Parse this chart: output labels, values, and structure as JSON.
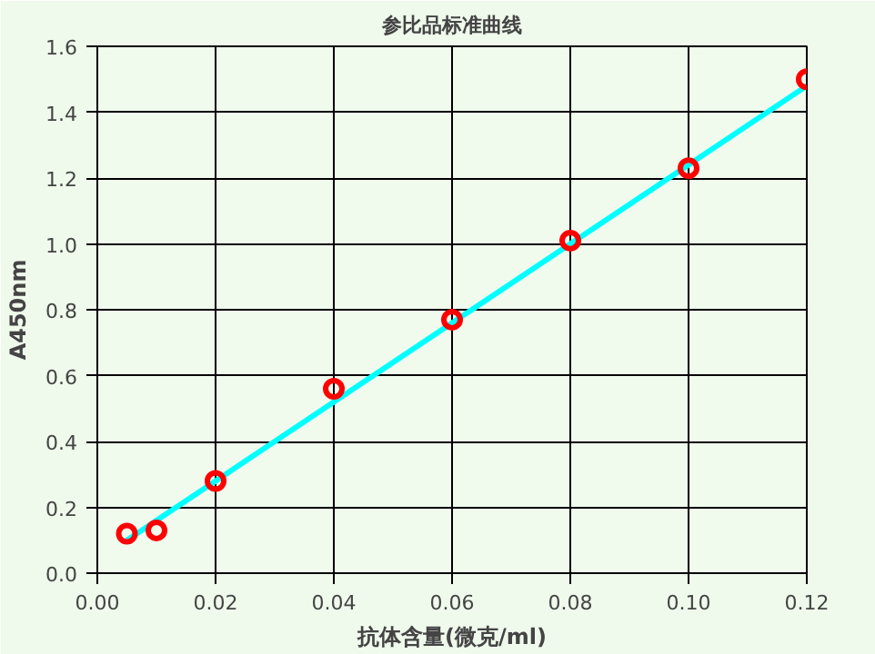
{
  "chart_data": {
    "type": "scatter",
    "title": "参比品标准曲线",
    "xlabel": "抗体含量(微克/ml)",
    "ylabel": "A450nm",
    "xlim": [
      0,
      0.12
    ],
    "ylim": [
      0,
      1.6
    ],
    "xticks": [
      {
        "value": 0,
        "label": "0.00"
      },
      {
        "value": 0.02,
        "label": "0.02"
      },
      {
        "value": 0.04,
        "label": "0.04"
      },
      {
        "value": 0.06,
        "label": "0.06"
      },
      {
        "value": 0.08,
        "label": "0.08"
      },
      {
        "value": 0.1,
        "label": "0.10"
      },
      {
        "value": 0.12,
        "label": "0.12"
      }
    ],
    "yticks": [
      {
        "value": 0,
        "label": "0.0"
      },
      {
        "value": 0.2,
        "label": "0.2"
      },
      {
        "value": 0.4,
        "label": "0.4"
      },
      {
        "value": 0.6,
        "label": "0.6"
      },
      {
        "value": 0.8,
        "label": "0.8"
      },
      {
        "value": 1.0,
        "label": "1.0"
      },
      {
        "value": 1.2,
        "label": "1.2"
      },
      {
        "value": 1.4,
        "label": "1.4"
      },
      {
        "value": 1.6,
        "label": "1.6"
      }
    ],
    "grid": true,
    "series": [
      {
        "marker": "circle",
        "color": "#ff0000",
        "x": [
          0.005,
          0.01,
          0.02,
          0.04,
          0.06,
          0.08,
          0.1,
          0.12
        ],
        "values": [
          0.12,
          0.13,
          0.28,
          0.56,
          0.77,
          1.01,
          1.23,
          1.5
        ]
      },
      {
        "type": "line",
        "color": "#00ffff",
        "x": [
          0.005,
          0.12
        ],
        "values": [
          0.1,
          1.48
        ]
      }
    ]
  }
}
